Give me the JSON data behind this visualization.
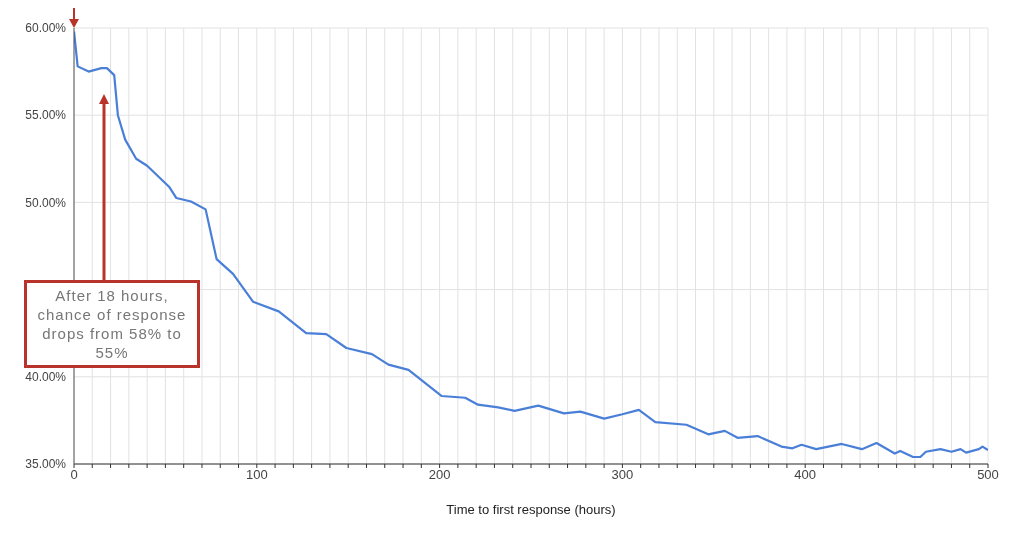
{
  "chart_data": {
    "type": "line",
    "xlabel": "Time to first response (hours)",
    "x": [
      0,
      2,
      8,
      15,
      18,
      22,
      24,
      28,
      34,
      40,
      52,
      56,
      64,
      72,
      78,
      87,
      98,
      112,
      127,
      138,
      149,
      163,
      172,
      183,
      201,
      214,
      221,
      232,
      241,
      254,
      268,
      277,
      290,
      300,
      309,
      318,
      335,
      347,
      356,
      363,
      374,
      387,
      393,
      398,
      406,
      420,
      431,
      439,
      449,
      452,
      459,
      463,
      466,
      474,
      480,
      485,
      488,
      495,
      497,
      500
    ],
    "series": [
      {
        "color": "#4a7fd8",
        "values": [
          59.8,
          57.8,
          57.5,
          57.7,
          57.7,
          57.3,
          55.0,
          53.6,
          52.5,
          52.1,
          50.9,
          50.25,
          50.05,
          49.6,
          46.75,
          45.9,
          44.3,
          43.75,
          42.5,
          42.45,
          41.65,
          41.3,
          40.7,
          40.4,
          38.9,
          38.8,
          38.4,
          38.25,
          38.05,
          38.35,
          37.9,
          38.0,
          37.6,
          37.85,
          38.1,
          37.4,
          37.25,
          36.7,
          36.9,
          36.5,
          36.6,
          36.0,
          35.9,
          36.1,
          35.85,
          36.15,
          35.85,
          36.2,
          35.6,
          35.75,
          35.4,
          35.4,
          35.7,
          35.85,
          35.7,
          35.85,
          35.65,
          35.85,
          36.0,
          35.8
        ]
      }
    ],
    "xlim": [
      0,
      500
    ],
    "xticks": [
      0,
      {
        "value": 10,
        "label": null
      },
      {
        "value": 20,
        "label": null
      },
      {
        "value": 30,
        "label": null
      },
      {
        "value": 40,
        "label": null
      },
      {
        "value": 50,
        "label": null
      },
      {
        "value": 60,
        "label": null
      },
      {
        "value": 70,
        "label": null
      },
      {
        "value": 80,
        "label": null
      },
      {
        "value": 90,
        "label": null
      },
      100,
      {
        "value": 110,
        "label": null
      },
      {
        "value": 120,
        "label": null
      },
      {
        "value": 130,
        "label": null
      },
      {
        "value": 140,
        "label": null
      },
      {
        "value": 150,
        "label": null
      },
      {
        "value": 160,
        "label": null
      },
      {
        "value": 170,
        "label": null
      },
      {
        "value": 180,
        "label": null
      },
      {
        "value": 190,
        "label": null
      },
      200,
      {
        "value": 210,
        "label": null
      },
      {
        "value": 220,
        "label": null
      },
      {
        "value": 230,
        "label": null
      },
      {
        "value": 240,
        "label": null
      },
      {
        "value": 250,
        "label": null
      },
      {
        "value": 260,
        "label": null
      },
      {
        "value": 270,
        "label": null
      },
      {
        "value": 280,
        "label": null
      },
      {
        "value": 290,
        "label": null
      },
      300,
      {
        "value": 310,
        "label": null
      },
      {
        "value": 320,
        "label": null
      },
      {
        "value": 330,
        "label": null
      },
      {
        "value": 340,
        "label": null
      },
      {
        "value": 350,
        "label": null
      },
      {
        "value": 360,
        "label": null
      },
      {
        "value": 370,
        "label": null
      },
      {
        "value": 380,
        "label": null
      },
      {
        "value": 390,
        "label": null
      },
      400,
      {
        "value": 410,
        "label": null
      },
      {
        "value": 420,
        "label": null
      },
      {
        "value": 430,
        "label": null
      },
      {
        "value": 440,
        "label": null
      },
      {
        "value": 450,
        "label": null
      },
      {
        "value": 460,
        "label": null
      },
      {
        "value": 470,
        "label": null
      },
      {
        "value": 480,
        "label": null
      },
      {
        "value": 490,
        "label": null
      },
      500
    ],
    "ylim": [
      35,
      60
    ],
    "yticks": [
      {
        "value": 35,
        "label": "35.00%"
      },
      {
        "value": 40,
        "label": "40.00%"
      },
      {
        "value": 45,
        "label": null
      },
      {
        "value": 50,
        "label": "50.00%"
      },
      {
        "value": 55,
        "label": "55.00%"
      },
      {
        "value": 60,
        "label": "60.00%"
      }
    ],
    "grid": true,
    "marker": "none",
    "line_style": "solid",
    "legend": false,
    "annotations": [
      "After 18 hours, chance of response drops from 58% to 55%"
    ]
  }
}
